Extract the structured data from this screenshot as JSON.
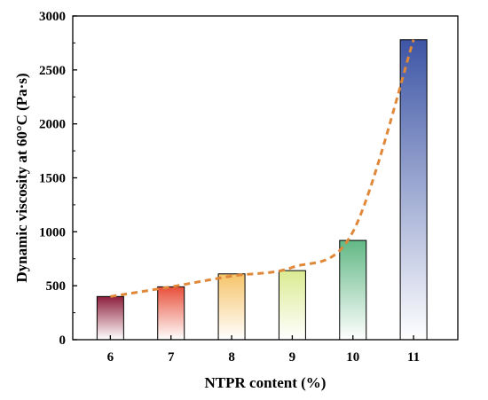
{
  "chart_data": {
    "type": "bar",
    "title": "",
    "xlabel": "NTPR content (%)",
    "ylabel": "Dynamic viscosity at 60°C (Pa·s)",
    "ylim": [
      0,
      3000
    ],
    "yticks": [
      0,
      500,
      1000,
      1500,
      2000,
      2500,
      3000
    ],
    "categories": [
      "6",
      "7",
      "8",
      "9",
      "10",
      "11"
    ],
    "values": [
      400,
      490,
      610,
      640,
      920,
      2780
    ],
    "bar_fill": "vertical gradient, white at base to colored top",
    "bar_colors": [
      "#8e1f3c",
      "#e8503b",
      "#f6c46a",
      "#dbeb92",
      "#62b885",
      "#3d55a5"
    ],
    "trendline": {
      "style": "dashed",
      "color": "#e0883a",
      "shape": "exponential fit through bar tops",
      "points": [
        {
          "x": "6",
          "y": 400
        },
        {
          "x": "7",
          "y": 490
        },
        {
          "x": "8",
          "y": 590
        },
        {
          "x": "9",
          "y": 670
        },
        {
          "x": "10",
          "y": 1000
        },
        {
          "x": "11",
          "y": 2780
        }
      ]
    },
    "grid": false,
    "legend": "none"
  }
}
